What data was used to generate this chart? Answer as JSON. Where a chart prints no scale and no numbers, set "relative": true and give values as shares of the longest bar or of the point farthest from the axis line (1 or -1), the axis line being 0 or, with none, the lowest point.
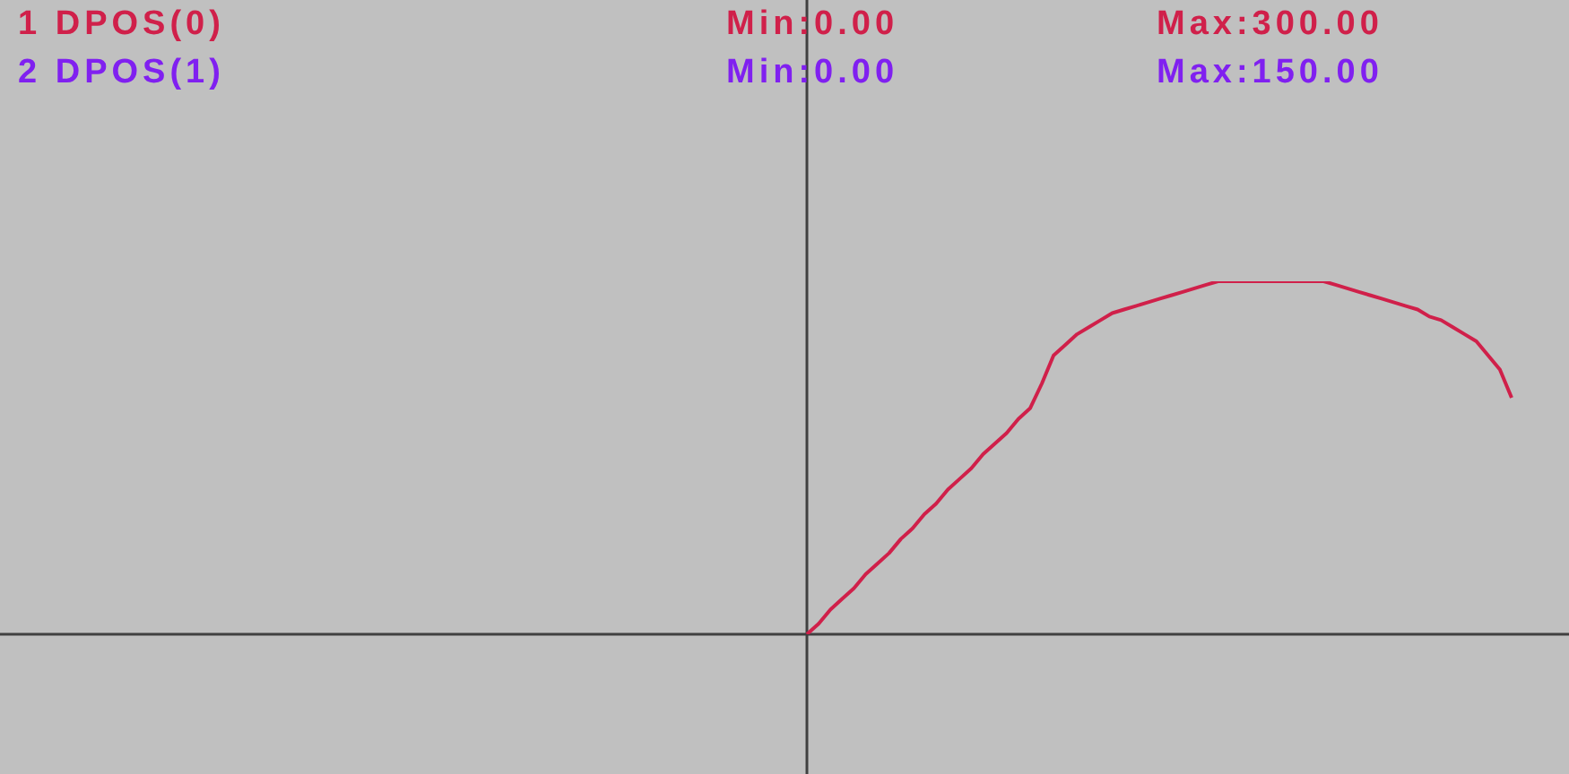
{
  "chart_data": {
    "type": "line",
    "annotations": [
      "1 DPOS(0)",
      "Min:0.00",
      "Max:300.00",
      "2 DPOS(1)",
      "Min:0.00",
      "Max:150.00"
    ],
    "relative": true,
    "categories": [
      null,
      null,
      null,
      null,
      null,
      null,
      null,
      null,
      null,
      null,
      null,
      null,
      null,
      null,
      null,
      null,
      null,
      null,
      null,
      null,
      null,
      null,
      null,
      null,
      null,
      null,
      null,
      null,
      null,
      null,
      null,
      null,
      null,
      null,
      null,
      null,
      null,
      null,
      null,
      null,
      null,
      null,
      null,
      null,
      null,
      null,
      null,
      null,
      null,
      null,
      null,
      null,
      null,
      null,
      null,
      null,
      null,
      null,
      null,
      null,
      null
    ],
    "series": [
      {
        "color": "#d0204a",
        "values": [
          0,
          0.03,
          0.07,
          0.1,
          0.13,
          0.17,
          0.2,
          0.23,
          0.27,
          0.3,
          0.34,
          0.37,
          0.41,
          0.44,
          0.47,
          0.51,
          0.54,
          0.57,
          0.61,
          0.64,
          0.71,
          0.79,
          0.82,
          0.85,
          0.87,
          0.89,
          0.91,
          0.92,
          0.93,
          0.94,
          0.95,
          0.96,
          0.97,
          0.98,
          0.99,
          1,
          1,
          1,
          1,
          1,
          1,
          1,
          1,
          1,
          1,
          0.99,
          0.98,
          0.97,
          0.96,
          0.95,
          0.94,
          0.93,
          0.92,
          0.9,
          0.89,
          0.87,
          0.85,
          0.83,
          0.79,
          0.75,
          0.67
        ]
      }
    ]
  }
}
